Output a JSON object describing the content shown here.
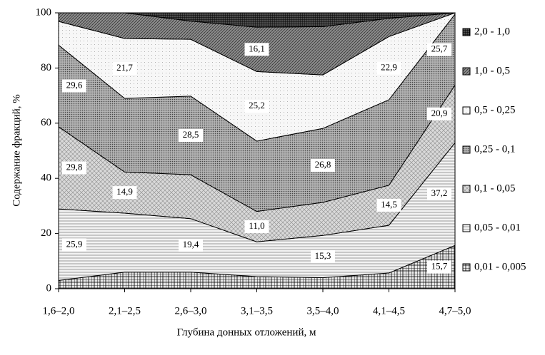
{
  "chart_data": {
    "type": "stacked_area",
    "x_label": "Глубина донных отложений, м",
    "y_label": "Содержание фракций, %",
    "categories": [
      "1,6–2,0",
      "2,1–2,5",
      "2,6–3,0",
      "3,1–3,5",
      "3,5–4,0",
      "4,1–4,5",
      "4,7–5,0"
    ],
    "ylim": [
      0,
      100
    ],
    "yticks": [
      0,
      20,
      40,
      60,
      80,
      100
    ],
    "series": [
      {
        "name": "0,01 - 0,005",
        "color": "#e6e6e6",
        "values": [
          3,
          6,
          6,
          4.4,
          4,
          5.7,
          15.7
        ],
        "value_labels": [
          null,
          null,
          null,
          null,
          null,
          null,
          "15,7"
        ]
      },
      {
        "name": "0,05 - 0,01",
        "color": "#f2f2f2",
        "values": [
          25.9,
          21.4,
          19.4,
          12.6,
          15.3,
          17.3,
          37.2
        ],
        "value_labels": [
          "25,9",
          null,
          "19,4",
          null,
          "15,3",
          null,
          "37,2"
        ]
      },
      {
        "name": "0,1 - 0,05",
        "color": "#d9d9d9",
        "values": [
          29.8,
          14.9,
          15.9,
          11.0,
          12,
          14.5,
          20.9
        ],
        "value_labels": [
          "29,8",
          "14,9",
          null,
          "11,0",
          null,
          "14,5",
          "20,9"
        ]
      },
      {
        "name": "0,25 - 0,1",
        "color": "#b3b3b3",
        "values": [
          29.6,
          26.7,
          28.5,
          25.5,
          26.8,
          31,
          25.7
        ],
        "value_labels": [
          "29,6",
          null,
          "28,5",
          null,
          "26,8",
          null,
          "25,7"
        ]
      },
      {
        "name": "0,5 - 0,25",
        "color": "#f7f7f7",
        "values": [
          8.6,
          21.7,
          20.6,
          25.2,
          19.4,
          22.9,
          0.5
        ],
        "value_labels": [
          null,
          "21,7",
          null,
          "25,2",
          null,
          "22,9",
          null
        ]
      },
      {
        "name": "1,0 - 0,5",
        "color": "#8c8c8c",
        "values": [
          3.1,
          9.3,
          6.6,
          16.1,
          17.5,
          6.6,
          0
        ],
        "value_labels": [
          null,
          null,
          null,
          "16,1",
          null,
          null,
          null
        ]
      },
      {
        "name": "2,0 - 1,0",
        "color": "#4d4d4d",
        "values": [
          0,
          0,
          3,
          5.2,
          5,
          2,
          0
        ],
        "value_labels": [
          null,
          null,
          null,
          null,
          null,
          null,
          null
        ]
      }
    ]
  }
}
